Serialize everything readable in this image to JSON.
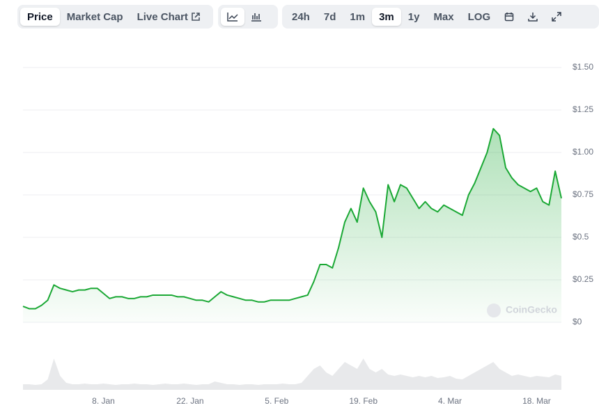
{
  "toolbar": {
    "tabs": [
      "Price",
      "Market Cap",
      "Live Chart"
    ],
    "ranges": [
      "24h",
      "7d",
      "1m",
      "3m",
      "1y",
      "Max",
      "LOG"
    ]
  },
  "chart_data": {
    "type": "area",
    "watermark": "CoinGecko",
    "x": [
      0,
      1,
      2,
      3,
      4,
      5,
      6,
      7,
      8,
      9,
      10,
      11,
      12,
      13,
      14,
      15,
      16,
      17,
      18,
      19,
      20,
      21,
      22,
      23,
      24,
      25,
      26,
      27,
      28,
      29,
      30,
      31,
      32,
      33,
      34,
      35,
      36,
      37,
      38,
      39,
      40,
      41,
      42,
      43,
      44,
      45,
      46,
      47,
      48,
      49,
      50,
      51,
      52,
      53,
      54,
      55,
      56,
      57,
      58,
      59,
      60,
      61,
      62,
      63,
      64,
      65,
      66,
      67,
      68,
      69,
      70,
      71,
      72,
      73,
      74,
      75,
      76,
      77,
      78,
      79,
      80,
      81,
      82,
      83,
      84,
      85,
      86,
      87
    ],
    "values": [
      0.094,
      0.08,
      0.08,
      0.1,
      0.13,
      0.22,
      0.2,
      0.19,
      0.18,
      0.19,
      0.19,
      0.2,
      0.2,
      0.17,
      0.14,
      0.15,
      0.15,
      0.14,
      0.14,
      0.15,
      0.15,
      0.16,
      0.16,
      0.16,
      0.16,
      0.15,
      0.15,
      0.14,
      0.13,
      0.13,
      0.12,
      0.15,
      0.18,
      0.16,
      0.15,
      0.14,
      0.13,
      0.13,
      0.12,
      0.12,
      0.13,
      0.13,
      0.13,
      0.13,
      0.14,
      0.15,
      0.16,
      0.24,
      0.34,
      0.34,
      0.32,
      0.44,
      0.59,
      0.67,
      0.59,
      0.79,
      0.71,
      0.65,
      0.5,
      0.81,
      0.71,
      0.81,
      0.79,
      0.73,
      0.67,
      0.71,
      0.67,
      0.65,
      0.69,
      0.67,
      0.65,
      0.63,
      0.75,
      0.82,
      0.91,
      1.0,
      1.14,
      1.1,
      0.91,
      0.85,
      0.81,
      0.79,
      0.77,
      0.79,
      0.71,
      0.69,
      0.89,
      0.73
    ],
    "color": "#1aa834",
    "volume": {
      "color": "#e8e9eb",
      "vlim": [
        0,
        60
      ],
      "values": [
        8,
        8,
        7,
        8,
        15,
        45,
        20,
        10,
        8,
        8,
        9,
        8,
        8,
        9,
        8,
        7,
        8,
        8,
        9,
        8,
        8,
        7,
        8,
        9,
        8,
        8,
        9,
        8,
        7,
        8,
        8,
        12,
        10,
        8,
        8,
        7,
        8,
        8,
        7,
        8,
        8,
        8,
        9,
        8,
        8,
        10,
        20,
        30,
        35,
        25,
        20,
        30,
        40,
        35,
        30,
        45,
        30,
        25,
        30,
        22,
        20,
        22,
        20,
        18,
        20,
        18,
        20,
        17,
        18,
        20,
        16,
        15,
        20,
        25,
        30,
        35,
        40,
        30,
        25,
        20,
        22,
        20,
        18,
        20,
        19,
        18,
        22,
        20
      ]
    },
    "xlim": [
      0,
      87
    ],
    "xticks": [
      {
        "value": 13,
        "label": "8. Jan"
      },
      {
        "value": 27,
        "label": "22. Jan"
      },
      {
        "value": 41,
        "label": "5. Feb"
      },
      {
        "value": 55,
        "label": "19. Feb"
      },
      {
        "value": 69,
        "label": "4. Mar"
      },
      {
        "value": 83,
        "label": "18. Mar"
      }
    ],
    "ylim": [
      0,
      1.5
    ],
    "yticks": [
      {
        "value": 0,
        "label": "$0"
      },
      {
        "value": 0.25,
        "label": "$0.25"
      },
      {
        "value": 0.5,
        "label": "$0.5"
      },
      {
        "value": 0.75,
        "label": "$0.75"
      },
      {
        "value": 1,
        "label": "$1.00"
      },
      {
        "value": 1.25,
        "label": "$1.25"
      },
      {
        "value": 1.5,
        "label": "$1.50"
      }
    ],
    "grid": true
  }
}
